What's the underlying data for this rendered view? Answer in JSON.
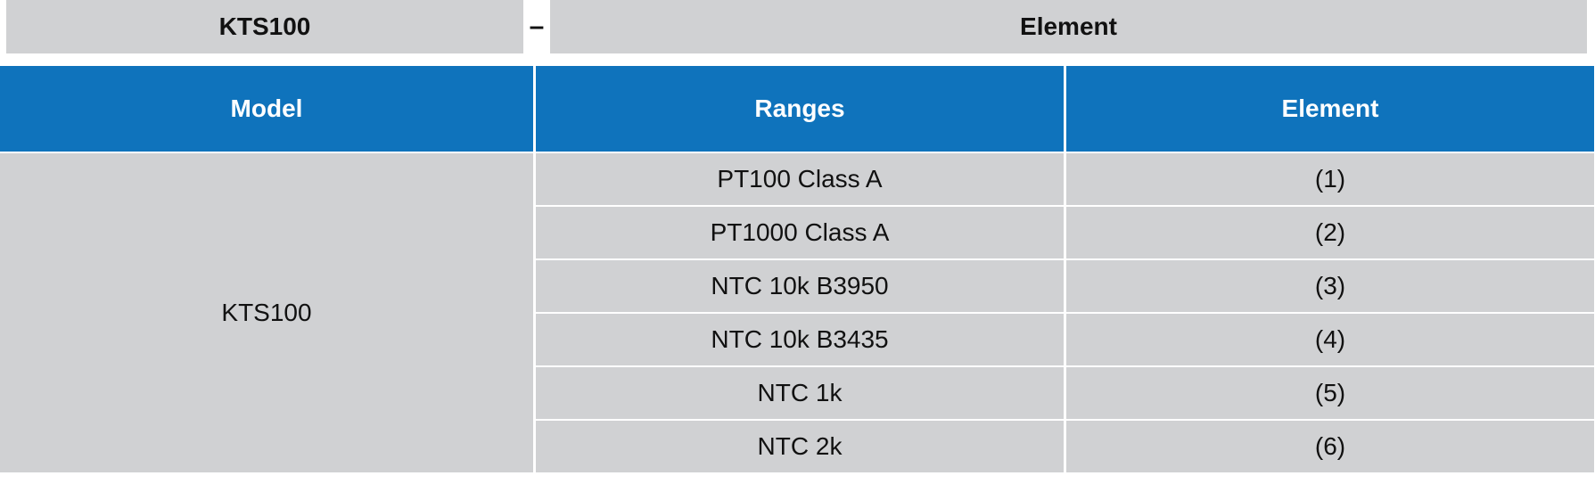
{
  "order_code": {
    "model": "KTS100",
    "separator": "–",
    "element": "Element"
  },
  "table": {
    "headers": {
      "model": "Model",
      "ranges": "Ranges",
      "element": "Element"
    },
    "model_value": "KTS100",
    "rows": [
      {
        "range": "PT100 Class A",
        "element": "(1)"
      },
      {
        "range": "PT1000 Class A",
        "element": "(2)"
      },
      {
        "range": "NTC 10k B3950",
        "element": "(3)"
      },
      {
        "range": "NTC 10k B3435",
        "element": "(4)"
      },
      {
        "range": "NTC 1k",
        "element": "(5)"
      },
      {
        "range": "NTC 2k",
        "element": "(6)"
      }
    ],
    "colors": {
      "header_bg": "#0f73bc",
      "cell_bg": "#d0d1d3"
    }
  }
}
